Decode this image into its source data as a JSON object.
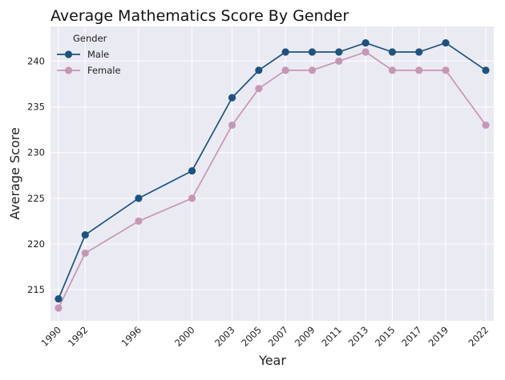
{
  "chart_data": {
    "type": "line",
    "title": "Average Mathematics Score By Gender",
    "xlabel": "Year",
    "ylabel": "Average Score",
    "x": [
      1990,
      1992,
      1996,
      2000,
      2003,
      2005,
      2007,
      2009,
      2011,
      2013,
      2015,
      2017,
      2019,
      2022
    ],
    "xlim": [
      1989.4,
      2022.6
    ],
    "ylim": [
      211.6,
      243.8
    ],
    "yticks": [
      215,
      220,
      225,
      230,
      235,
      240
    ],
    "grid": true,
    "legend": {
      "title": "Gender",
      "placement": "top-left"
    },
    "series": [
      {
        "name": "Male",
        "color": "#1a5480",
        "values": [
          214,
          221,
          225,
          228,
          236,
          239,
          241,
          241,
          241,
          242,
          241,
          241,
          242,
          239
        ]
      },
      {
        "name": "Female",
        "color": "#c796b5",
        "values": [
          213,
          219,
          222.5,
          225,
          233,
          237,
          239,
          239,
          240,
          241,
          239,
          239,
          239,
          233
        ]
      }
    ],
    "background_color": "#eaeaf2",
    "grid_color": "#ffffff"
  }
}
